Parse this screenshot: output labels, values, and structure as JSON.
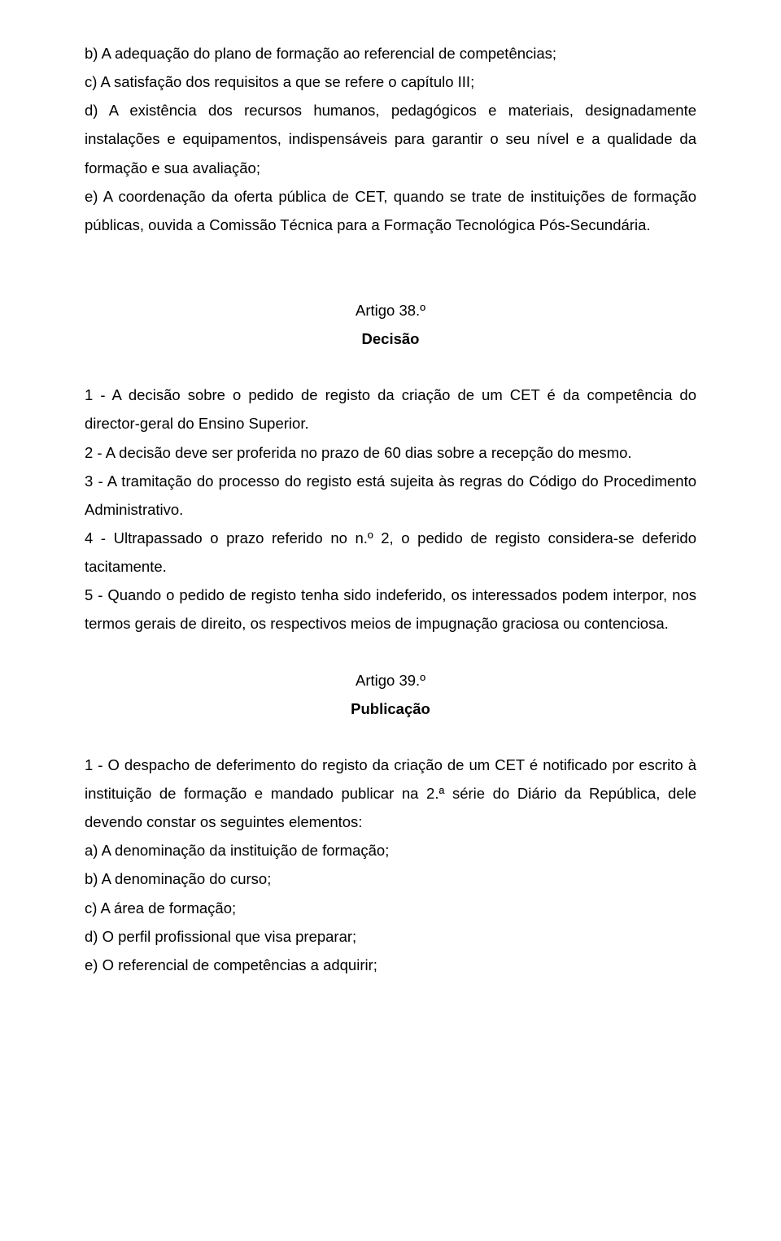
{
  "block1": {
    "b": "b) A adequação do plano de formação ao referencial de competências;",
    "c": "c) A satisfação dos requisitos a que se refere o capítulo III;",
    "d": "d) A existência dos recursos humanos, pedagógicos e materiais, designadamente instalações e equipamentos, indispensáveis para garantir o seu nível e a qualidade da formação e sua avaliação;",
    "e": "e) A coordenação da oferta pública de CET, quando se trate de instituições de formação públicas, ouvida a Comissão Técnica para a Formação Tecnológica Pós-Secundária."
  },
  "art38": {
    "num": "Artigo 38.º",
    "title": "Decisão",
    "p1": "1 - A decisão sobre o pedido de registo da criação de um CET é da competência do director-geral do Ensino Superior.",
    "p2": "2 - A decisão deve ser proferida no prazo de 60 dias sobre a recepção do mesmo.",
    "p3": "3 - A tramitação do processo do registo está sujeita às regras do Código do Procedimento Administrativo.",
    "p4": "4 - Ultrapassado o prazo referido no n.º 2, o pedido de registo considera-se deferido tacitamente.",
    "p5": "5 - Quando o pedido de registo tenha sido indeferido, os interessados podem interpor, nos termos gerais de direito, os respectivos meios de impugnação graciosa ou contenciosa."
  },
  "art39": {
    "num": "Artigo 39.º",
    "title": "Publicação",
    "p1": "1 - O despacho de deferimento do registo da criação de um CET é notificado por escrito à instituição de formação e mandado publicar na 2.ª série do Diário da República, dele devendo constar os seguintes elementos:",
    "a": "a) A denominação da instituição de formação;",
    "b": "b) A denominação do curso;",
    "c": "c) A área de formação;",
    "d": "d) O perfil profissional que visa preparar;",
    "e": "e) O referencial de competências a adquirir;"
  }
}
